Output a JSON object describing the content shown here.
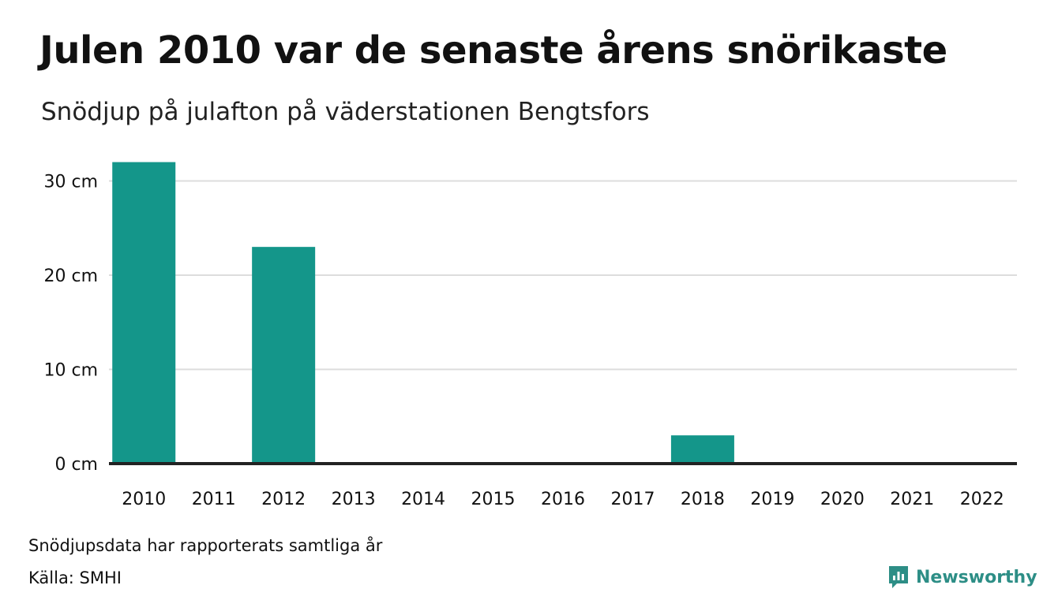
{
  "colors": {
    "bar": "#14968a",
    "grid": "#dddddd",
    "axis": "#222222",
    "brand": "#2d8e86"
  },
  "chart_data": {
    "type": "bar",
    "title": "Julen 2010 var de senaste årens snörikaste",
    "subtitle": "Snödjup på julafton på väderstationen Bengtsfors",
    "categories": [
      "2010",
      "2011",
      "2012",
      "2013",
      "2014",
      "2015",
      "2016",
      "2017",
      "2018",
      "2019",
      "2020",
      "2021",
      "2022"
    ],
    "series": [
      {
        "values": [
          32,
          0,
          23,
          0,
          0,
          0,
          0,
          0,
          3,
          0,
          0,
          0,
          0
        ]
      }
    ],
    "yticks": [
      {
        "value": 0,
        "label": "0 cm"
      },
      {
        "value": 10,
        "label": "10 cm"
      },
      {
        "value": 20,
        "label": "20 cm"
      },
      {
        "value": 30,
        "label": "30 cm"
      }
    ],
    "ylim": [
      0,
      32
    ],
    "grid": true,
    "legend": "none"
  },
  "footer": {
    "note": "Snödjupsdata har rapporterats samtliga år",
    "source": "Källa: SMHI",
    "brand": "Newsworthy"
  },
  "icons": {
    "brand_logo": "newsworthy-logo-icon"
  }
}
